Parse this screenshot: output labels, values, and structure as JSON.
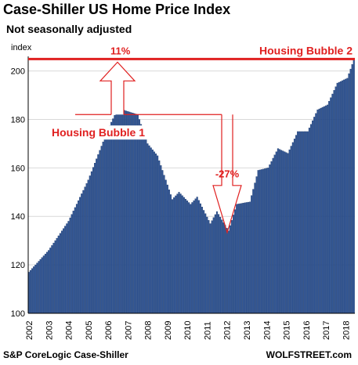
{
  "title": "Case-Shiller US Home Price Index",
  "subtitle": "Not seasonally adjusted",
  "source": "S&P CoreLogic Case-Shiller",
  "brand": "WOLFSTREET.com",
  "colors": {
    "bar": "#2f5597",
    "bar_edge": "#14305f",
    "annotation": "#e02020"
  },
  "chart_data": {
    "type": "bar",
    "title": "Case-Shiller US Home Price Index",
    "subtitle": "Not seasonally adjusted",
    "ylabel": "index",
    "xlabel": "",
    "ylim": [
      100,
      206
    ],
    "yticks": [
      100,
      120,
      140,
      160,
      180,
      200
    ],
    "x_tick_labels": [
      "2002",
      "2003",
      "2004",
      "2005",
      "2006",
      "2007",
      "2008",
      "2009",
      "2010",
      "2011",
      "2012",
      "2013",
      "2014",
      "2015",
      "2016",
      "2017",
      "2018"
    ],
    "frequency": "monthly",
    "start": "2002-01",
    "keypoints": [
      [
        "2002-01",
        117
      ],
      [
        "2003-01",
        126
      ],
      [
        "2004-01",
        138
      ],
      [
        "2005-01",
        155
      ],
      [
        "2006-01",
        176
      ],
      [
        "2006-07",
        184.6
      ],
      [
        "2007-07",
        182
      ],
      [
        "2008-01",
        170
      ],
      [
        "2008-07",
        165
      ],
      [
        "2009-04",
        147
      ],
      [
        "2009-08",
        150
      ],
      [
        "2010-03",
        145
      ],
      [
        "2010-07",
        148
      ],
      [
        "2011-03",
        137
      ],
      [
        "2011-07",
        142
      ],
      [
        "2012-02",
        134
      ],
      [
        "2012-07",
        145
      ],
      [
        "2013-03",
        146
      ],
      [
        "2013-08",
        159
      ],
      [
        "2014-02",
        160
      ],
      [
        "2014-08",
        168
      ],
      [
        "2015-02",
        166
      ],
      [
        "2015-08",
        175
      ],
      [
        "2016-02",
        175
      ],
      [
        "2016-08",
        184
      ],
      [
        "2017-02",
        186
      ],
      [
        "2017-08",
        195
      ],
      [
        "2018-02",
        197
      ],
      [
        "2018-06",
        204.6
      ]
    ],
    "annotations": {
      "bubble1_label": "Housing Bubble 1",
      "bubble2_label": "Housing Bubble 2",
      "rise_pct": "11%",
      "drop_pct": "-27%",
      "bubble2_level": 204.6,
      "bubble1_peak": 184.6,
      "trough": 134
    }
  }
}
